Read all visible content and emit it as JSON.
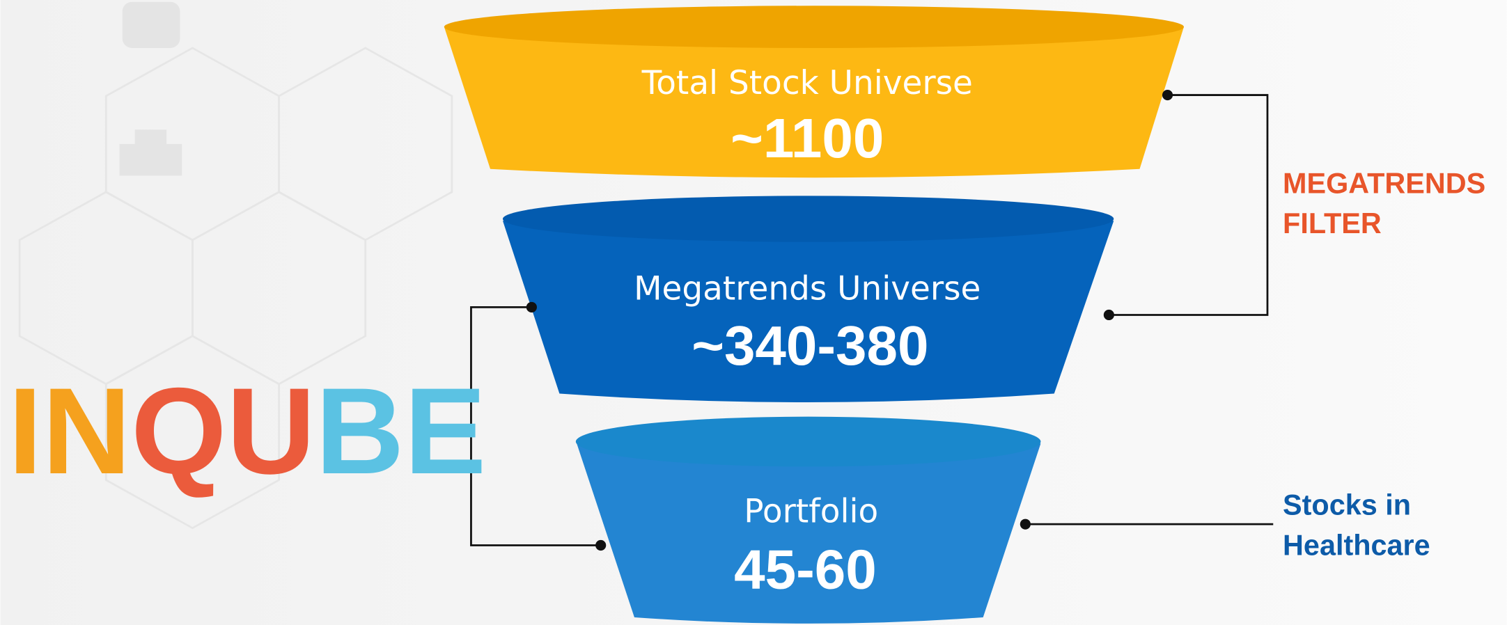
{
  "logo": {
    "parts": [
      "IN",
      "QU",
      "BE"
    ]
  },
  "funnel": [
    {
      "label": "Total Stock Universe",
      "value": "~1100"
    },
    {
      "label": "Megatrends Universe",
      "value": "~340-380"
    },
    {
      "label": "Portfolio",
      "value": "45-60"
    }
  ],
  "annotations": [
    {
      "lines": [
        "MEGATRENDS",
        "FILTER"
      ]
    },
    {
      "lines": [
        "Stocks in",
        "Healthcare"
      ]
    }
  ]
}
